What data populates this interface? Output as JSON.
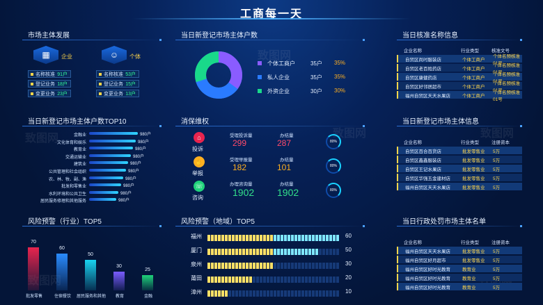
{
  "header": {
    "title": "工商每一天"
  },
  "dev": {
    "title": "市场主体发展",
    "company": {
      "label": "企业",
      "rows": [
        {
          "name": "名称核准",
          "val": "91户"
        },
        {
          "name": "登记业务",
          "val": "18户"
        },
        {
          "name": "变更业务",
          "val": "23户"
        }
      ]
    },
    "individual": {
      "label": "个体",
      "rows": [
        {
          "name": "名称核准",
          "val": "53户"
        },
        {
          "name": "登记业务",
          "val": "15户"
        },
        {
          "name": "变更业务",
          "val": "13户"
        }
      ]
    }
  },
  "top10": {
    "title": "当日新登记市场主体户数TOP10",
    "rows": [
      {
        "name": "金融业",
        "val": "980户",
        "pct": 1.0
      },
      {
        "name": "文化体育和娱乐",
        "val": "980户",
        "pct": 0.95
      },
      {
        "name": "教育业",
        "val": "980户",
        "pct": 0.9
      },
      {
        "name": "交通运输业",
        "val": "980户",
        "pct": 0.85
      },
      {
        "name": "建筑业",
        "val": "980户",
        "pct": 0.8
      },
      {
        "name": "公共管理和社会组织",
        "val": "980户",
        "pct": 0.75
      },
      {
        "name": "农、林、牧、副、渔",
        "val": "980户",
        "pct": 0.7
      },
      {
        "name": "批发和零售业",
        "val": "980户",
        "pct": 0.65
      },
      {
        "name": "水利环境和公共卫生",
        "val": "980户",
        "pct": 0.6
      },
      {
        "name": "居民服务修理和其他服务",
        "val": "980户",
        "pct": 0.55
      }
    ]
  },
  "risk_industry": {
    "title": "风险预警（行业）TOP5",
    "bars": [
      {
        "name": "批发零售",
        "val": "70",
        "v": 70,
        "color": "#e8244e"
      },
      {
        "name": "住宿餐饮",
        "val": "60",
        "v": 60,
        "color": "#2a8cff"
      },
      {
        "name": "居民服务和其他",
        "val": "50",
        "v": 50,
        "color": "#19d3f0"
      },
      {
        "name": "教育",
        "val": "30",
        "v": 30,
        "color": "#7a5cff"
      },
      {
        "name": "金融",
        "val": "25",
        "v": 25,
        "color": "#1fd27a"
      }
    ]
  },
  "new_reg": {
    "title": "当日新登记市场主体户数",
    "items": [
      {
        "name": "个体工商户",
        "count": "35户",
        "pct": "35%",
        "color": "#8a5cff"
      },
      {
        "name": "私人企业",
        "count": "35户",
        "pct": "35%",
        "color": "#2a7bff"
      },
      {
        "name": "外资企业",
        "count": "30户",
        "pct": "30%",
        "color": "#19d98a"
      }
    ]
  },
  "consumer": {
    "title": "消保维权",
    "rows": [
      {
        "icon": "投诉",
        "l1": "受理投诉量",
        "v1": "299",
        "l2": "办结量",
        "v2": "287",
        "ring": "80%",
        "color": "#ff4a6a",
        "icolor": "#e8244e"
      },
      {
        "icon": "举报",
        "l1": "受理举报量",
        "v1": "182",
        "l2": "办结量",
        "v2": "101",
        "ring": "80%",
        "color": "#ffb020",
        "icolor": "#ffb020"
      },
      {
        "icon": "咨询",
        "l1": "办理咨询量",
        "v1": "1902",
        "l2": "办结量",
        "v2": "1902",
        "ring": "80%",
        "color": "#33e08a",
        "icolor": "#1fd27a"
      }
    ]
  },
  "risk_region": {
    "title": "风险预警（地域）TOP5",
    "rows": [
      {
        "name": "福州",
        "val": "60",
        "v": 60
      },
      {
        "name": "厦门",
        "val": "50",
        "v": 50
      },
      {
        "name": "泉州",
        "val": "30",
        "v": 30
      },
      {
        "name": "莆田",
        "val": "20",
        "v": 20
      },
      {
        "name": "漳州",
        "val": "10",
        "v": 10
      }
    ]
  },
  "approval": {
    "title": "当日核准名称信息",
    "headers": [
      "企业名称",
      "行业类型",
      "核准文号"
    ],
    "rows": [
      [
        "自贸区尚时服装店",
        "个体工商户",
        "个体名预核准01号"
      ],
      [
        "自贸区老百姓药店",
        "个体工商户",
        "个体名预核准01号"
      ],
      [
        "自贸区康健药店",
        "个体工商户",
        "个体名预核准01号"
      ],
      [
        "自贸区好邻居超市",
        "个体工商户",
        "个体名预核准01号"
      ],
      [
        "福州自贸区天天水果店",
        "个体工商户",
        "个体名预核准01号"
      ]
    ]
  },
  "new_info": {
    "title": "当日新登记市场主体信息",
    "headers": [
      "企业名称",
      "行业类型",
      "注册资本"
    ],
    "rows": [
      [
        "自贸区百合百货店",
        "批发零售业",
        "5万"
      ],
      [
        "自贸区鑫鑫服装店",
        "批发零售业",
        "5万"
      ],
      [
        "自贸区王记水果店",
        "批发零售业",
        "5万"
      ],
      [
        "自贸区华强五金建材店",
        "批发零售业",
        "5万"
      ],
      [
        "福州自贸区天天水果店",
        "批发零售业",
        "5万"
      ]
    ]
  },
  "penalty": {
    "title": "当日行政处罚市场主体名单",
    "headers": [
      "企业名称",
      "行业类型",
      "注册资本"
    ],
    "rows": [
      [
        "福州自贸区天天水果店",
        "批发零售业",
        "5万"
      ],
      [
        "福州自贸区好月超市",
        "批发零售业",
        "5万"
      ],
      [
        "福州自贸区好时光教育",
        "教育业",
        "5万"
      ],
      [
        "福州自贸区好时光教育",
        "教育业",
        "5万"
      ],
      [
        "福州自贸区好时光教育",
        "教育业",
        "5万"
      ]
    ]
  }
}
